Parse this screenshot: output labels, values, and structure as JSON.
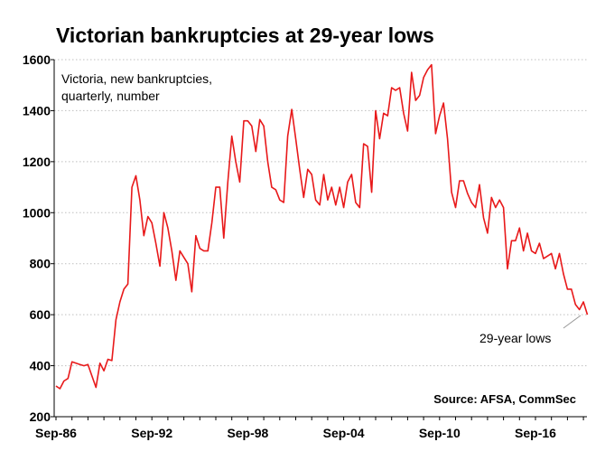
{
  "chart_data": {
    "type": "line",
    "title": "Victorian bankruptcies at 29-year lows",
    "subtitle_lines": [
      "Victoria, new bankruptcies,",
      "quarterly, number"
    ],
    "source": "Source: AFSA, CommSec",
    "annotation": "29-year lows",
    "x_tick_labels": [
      "Sep-86",
      "Sep-92",
      "Sep-98",
      "Sep-04",
      "Sep-10",
      "Sep-16"
    ],
    "ylim": [
      200,
      1600
    ],
    "y_ticks": [
      200,
      400,
      600,
      800,
      1000,
      1200,
      1400,
      1600
    ],
    "grid": true,
    "line_color": "#e8191a",
    "series": [
      {
        "start": "Sep-86",
        "frequency": "quarterly",
        "values": [
          320,
          310,
          340,
          350,
          415,
          410,
          405,
          400,
          405,
          360,
          315,
          410,
          380,
          425,
          420,
          580,
          650,
          700,
          720,
          1100,
          1145,
          1050,
          910,
          985,
          960,
          880,
          790,
          1000,
          940,
          850,
          735,
          850,
          825,
          800,
          690,
          910,
          860,
          850,
          850,
          960,
          1100,
          1100,
          900,
          1120,
          1300,
          1200,
          1120,
          1360,
          1360,
          1340,
          1240,
          1365,
          1340,
          1200,
          1100,
          1090,
          1050,
          1040,
          1300,
          1405,
          1290,
          1170,
          1060,
          1170,
          1150,
          1050,
          1030,
          1150,
          1050,
          1100,
          1030,
          1100,
          1020,
          1120,
          1150,
          1040,
          1020,
          1270,
          1260,
          1080,
          1400,
          1290,
          1390,
          1380,
          1490,
          1480,
          1490,
          1390,
          1320,
          1550,
          1440,
          1460,
          1530,
          1560,
          1580,
          1310,
          1380,
          1430,
          1290,
          1080,
          1020,
          1125,
          1125,
          1075,
          1040,
          1020,
          1110,
          980,
          920,
          1060,
          1020,
          1050,
          1020,
          780,
          890,
          890,
          940,
          850,
          920,
          850,
          840,
          880,
          820,
          830,
          840,
          780,
          840,
          760,
          700,
          700,
          640,
          620,
          650,
          600
        ]
      }
    ]
  }
}
